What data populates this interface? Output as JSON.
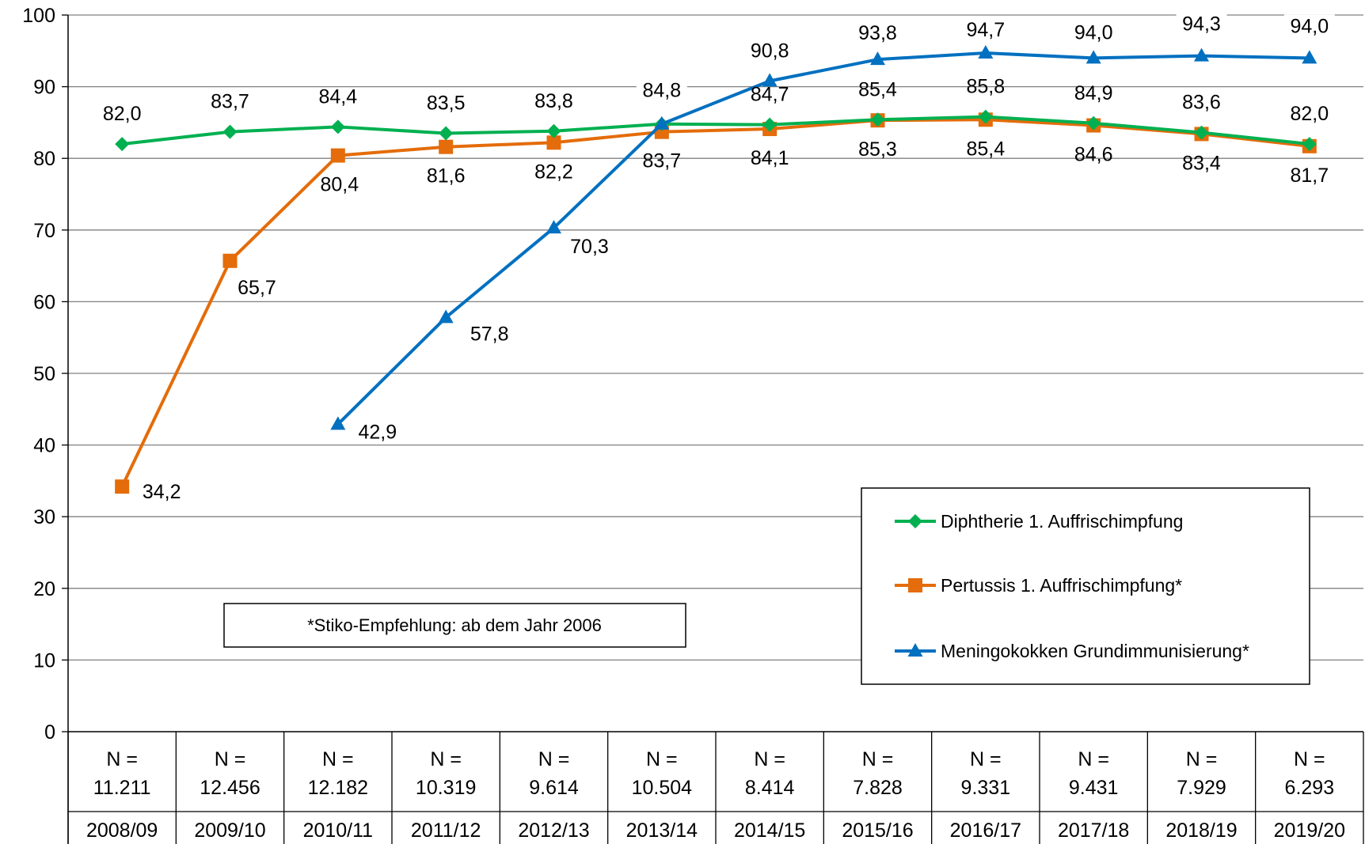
{
  "chart_data": {
    "type": "line",
    "categories": [
      "2008/09",
      "2009/10",
      "2010/11",
      "2011/12",
      "2012/13",
      "2013/14",
      "2014/15",
      "2015/16",
      "2016/17",
      "2017/18",
      "2018/19",
      "2019/20"
    ],
    "n_prefix": "N =",
    "n_values": [
      "11.211",
      "12.456",
      "12.182",
      "10.319",
      "9.614",
      "10.504",
      "8.414",
      "7.828",
      "9.331",
      "9.431",
      "7.929",
      "6.293"
    ],
    "ylim": [
      0,
      100
    ],
    "yticks": [
      0,
      10,
      20,
      30,
      40,
      50,
      60,
      70,
      80,
      90,
      100
    ],
    "grid": true,
    "legend_position": "right",
    "series": [
      {
        "name": "Diphtherie 1. Auffrischimpfung",
        "color": "#00B050",
        "marker": "diamond",
        "values": [
          82.0,
          83.7,
          84.4,
          83.5,
          83.8,
          84.8,
          84.7,
          85.4,
          85.8,
          84.9,
          83.6,
          82.0
        ],
        "labels": [
          "82,0",
          "83,7",
          "84,4",
          "83,5",
          "83,8",
          "84,8",
          "84,7",
          "85,4",
          "85,8",
          "84,9",
          "83,6",
          "82,0"
        ]
      },
      {
        "name": "Pertussis 1. Auffrischimpfung*",
        "color": "#E46C0A",
        "marker": "square",
        "values": [
          34.2,
          65.7,
          80.4,
          81.6,
          82.2,
          83.7,
          84.1,
          85.3,
          85.4,
          84.6,
          83.4,
          81.7
        ],
        "labels": [
          "34,2",
          "65,7",
          "80,4",
          "81,6",
          "82,2",
          "83,7",
          "84,1",
          "85,3",
          "85,4",
          "84,6",
          "83,4",
          "81,7"
        ]
      },
      {
        "name": "Meningokokken Grundimmunisierung*",
        "color": "#0070C0",
        "marker": "triangle",
        "values": [
          null,
          null,
          42.9,
          57.8,
          70.3,
          84.8,
          90.8,
          93.8,
          94.7,
          94.0,
          94.3,
          94.0
        ],
        "labels": [
          null,
          null,
          "42,9",
          "57,8",
          "70,3",
          "84,8",
          "90,8",
          "93,8",
          "94,7",
          "94,0",
          "94,3",
          "94,0"
        ]
      }
    ],
    "annotation": "*Stiko-Empfehlung: ab dem Jahr 2006"
  }
}
